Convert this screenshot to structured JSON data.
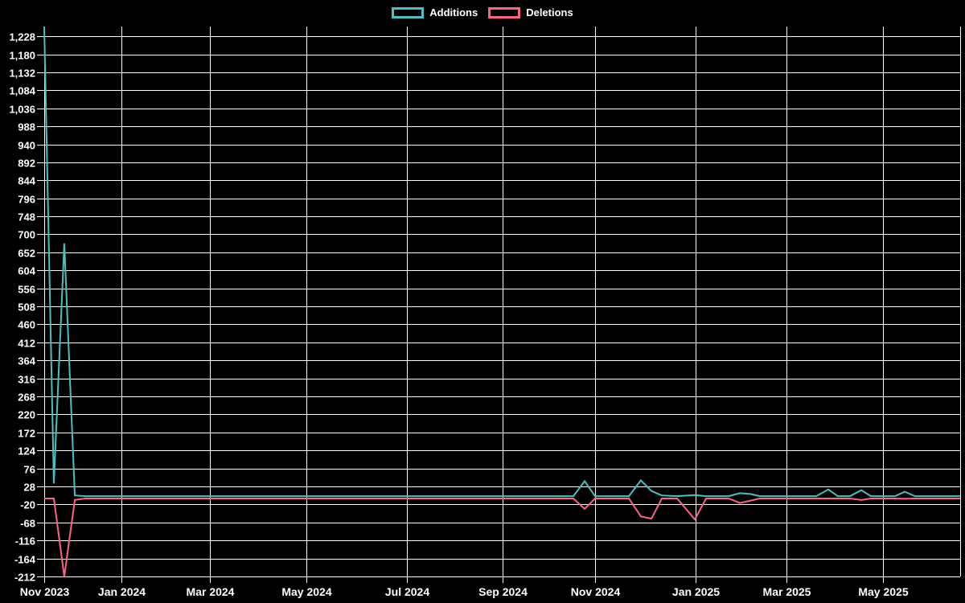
{
  "chart_data": {
    "type": "line",
    "title": "",
    "background": "#000000",
    "text_color": "#ffffff",
    "grid": {
      "visible": true,
      "color": "#ffffff"
    },
    "legend_position": "top-center",
    "legend": [
      {
        "name": "Additions",
        "color": "#4BC0C0"
      },
      {
        "name": "Deletions",
        "color": "#FF6384"
      }
    ],
    "y_axis": {
      "min": -212,
      "max": 1254,
      "tick_step": 48,
      "ticks": [
        1228,
        1180,
        1132,
        1084,
        1036,
        988,
        940,
        892,
        844,
        796,
        748,
        700,
        652,
        604,
        556,
        508,
        460,
        412,
        364,
        316,
        268,
        220,
        172,
        124,
        76,
        28,
        -20,
        -68,
        -116,
        -164,
        -212
      ]
    },
    "x_axis": {
      "ticks": [
        {
          "label": "Nov 2023",
          "pos": 0.0
        },
        {
          "label": "Jan 2024",
          "pos": 0.0843
        },
        {
          "label": "Mar 2024",
          "pos": 0.1808
        },
        {
          "label": "May 2024",
          "pos": 0.2862
        },
        {
          "label": "Jul 2024",
          "pos": 0.396
        },
        {
          "label": "Sep 2024",
          "pos": 0.5004
        },
        {
          "label": "Nov 2024",
          "pos": 0.6014
        },
        {
          "label": "Jan 2025",
          "pos": 0.7111
        },
        {
          "label": "Mar 2025",
          "pos": 0.8103
        },
        {
          "label": "May 2025",
          "pos": 0.9157
        }
      ],
      "right_edge_gridline": 1.0
    },
    "series": [
      {
        "name": "Additions",
        "color": "#4BC0C0",
        "points": [
          [
            0.0,
            1254
          ],
          [
            0.0105,
            36
          ],
          [
            0.0219,
            676
          ],
          [
            0.0334,
            4
          ],
          [
            0.0448,
            2
          ],
          [
            0.5777,
            2
          ],
          [
            0.59,
            42
          ],
          [
            0.6014,
            2
          ],
          [
            0.6383,
            2
          ],
          [
            0.6514,
            44
          ],
          [
            0.6629,
            16
          ],
          [
            0.6743,
            4
          ],
          [
            0.691,
            2
          ],
          [
            0.7103,
            5
          ],
          [
            0.7226,
            2
          ],
          [
            0.7472,
            2
          ],
          [
            0.7595,
            10
          ],
          [
            0.7709,
            8
          ],
          [
            0.7814,
            2
          ],
          [
            0.8429,
            2
          ],
          [
            0.856,
            20
          ],
          [
            0.8665,
            2
          ],
          [
            0.8797,
            2
          ],
          [
            0.892,
            18
          ],
          [
            0.9025,
            2
          ],
          [
            0.9289,
            2
          ],
          [
            0.9394,
            14
          ],
          [
            0.9508,
            2
          ],
          [
            1.0,
            2
          ]
        ]
      },
      {
        "name": "Deletions",
        "color": "#FF6384",
        "points": [
          [
            0.0,
            -4
          ],
          [
            0.0105,
            -4
          ],
          [
            0.0219,
            -212
          ],
          [
            0.0334,
            -8
          ],
          [
            0.0448,
            -4
          ],
          [
            0.5777,
            -4
          ],
          [
            0.59,
            -32
          ],
          [
            0.6014,
            -4
          ],
          [
            0.6383,
            -4
          ],
          [
            0.6514,
            -52
          ],
          [
            0.6629,
            -58
          ],
          [
            0.6743,
            -4
          ],
          [
            0.691,
            -4
          ],
          [
            0.7103,
            -60
          ],
          [
            0.7226,
            -4
          ],
          [
            0.7472,
            -4
          ],
          [
            0.7595,
            -16
          ],
          [
            0.7709,
            -10
          ],
          [
            0.7814,
            -4
          ],
          [
            0.8429,
            -4
          ],
          [
            0.856,
            -4
          ],
          [
            0.8665,
            -4
          ],
          [
            0.8797,
            -4
          ],
          [
            0.892,
            -8
          ],
          [
            0.9025,
            -4
          ],
          [
            0.9289,
            -4
          ],
          [
            0.9394,
            -5
          ],
          [
            0.9508,
            -4
          ],
          [
            1.0,
            -4
          ]
        ]
      }
    ]
  }
}
